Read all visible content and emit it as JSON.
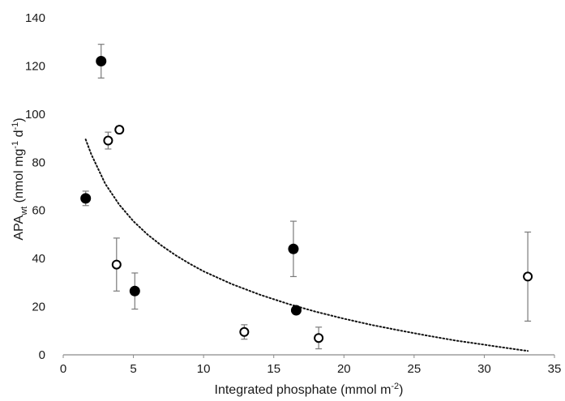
{
  "chart_data": {
    "type": "scatter",
    "xlabel": "Integrated phosphate (mmol m",
    "xlabel_sup": "-2",
    "xlabel_suffix": ")",
    "ylabel": "APA",
    "ylabel_sub": "wt",
    "ylabel_unit_1": " (nmol mg",
    "ylabel_sup_1": "-1",
    "ylabel_unit_2": " d",
    "ylabel_sup_2": "-1",
    "ylabel_unit_3": ")",
    "xlim": [
      0,
      35
    ],
    "ylim": [
      0,
      140
    ],
    "x_ticks": [
      "0",
      "5",
      "10",
      "15",
      "20",
      "25",
      "30",
      "35"
    ],
    "y_ticks": [
      "0",
      "20",
      "40",
      "60",
      "80",
      "100",
      "120",
      "140"
    ],
    "grid": false,
    "legend": "none",
    "series": [
      {
        "marker": "filled-circle",
        "color": "#000000",
        "points": [
          {
            "x": 2.7,
            "y": 122,
            "err": 7
          },
          {
            "x": 1.6,
            "y": 65,
            "err": 3
          },
          {
            "x": 5.1,
            "y": 26.5,
            "err": 7.5
          },
          {
            "x": 16.4,
            "y": 44,
            "err": 11.5
          },
          {
            "x": 16.6,
            "y": 18.5,
            "err": 0
          }
        ]
      },
      {
        "marker": "open-circle",
        "color": "#000000",
        "points": [
          {
            "x": 3.2,
            "y": 89,
            "err": 3.5
          },
          {
            "x": 4.0,
            "y": 93.5,
            "err": 1.5
          },
          {
            "x": 3.8,
            "y": 37.5,
            "err": 11
          },
          {
            "x": 12.9,
            "y": 9.5,
            "err": 3
          },
          {
            "x": 18.2,
            "y": 7,
            "err": 4.5
          },
          {
            "x": 33.1,
            "y": 32.5,
            "err": 18.5
          }
        ]
      }
    ],
    "trendline": {
      "style": "dotted",
      "x": [
        1.6,
        2,
        3,
        4,
        5,
        6,
        7,
        8,
        9,
        10,
        12,
        14,
        16,
        18,
        20,
        22,
        24,
        26,
        28,
        30,
        32,
        33.1
      ],
      "y": [
        89.5,
        83.3,
        71.0,
        62.3,
        55.5,
        50.0,
        45.4,
        41.4,
        37.9,
        34.7,
        29.4,
        25.0,
        21.2,
        17.9,
        15.0,
        12.4,
        10.1,
        7.9,
        5.9,
        4.2,
        2.5,
        1.6
      ]
    }
  }
}
